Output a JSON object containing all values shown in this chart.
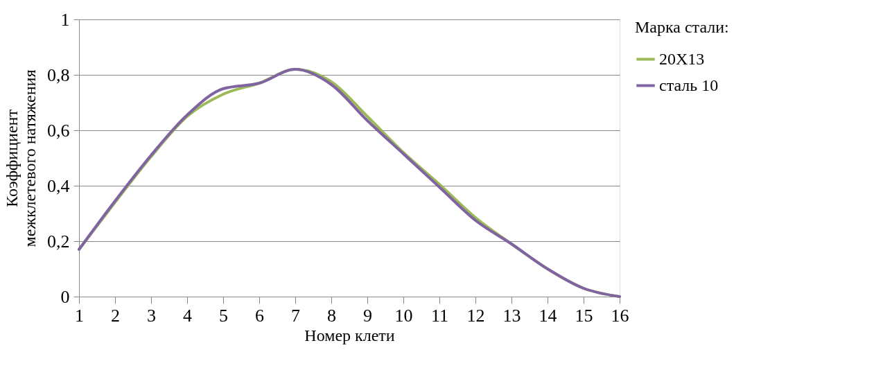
{
  "chart_data": {
    "type": "line",
    "xlabel": "Номер клети",
    "ylabel": "Коэффициент межклетевого натяжения",
    "legend_title": "Марка стали:",
    "x": [
      1,
      2,
      3,
      4,
      5,
      6,
      7,
      8,
      9,
      10,
      11,
      12,
      13,
      14,
      15,
      16
    ],
    "series": [
      {
        "name": "20X13",
        "color": "#9bbb59",
        "values": [
          0.17,
          0.34,
          0.505,
          0.65,
          0.73,
          0.77,
          0.82,
          0.775,
          0.65,
          0.52,
          0.405,
          0.285,
          0.19,
          0.1,
          0.03,
          0.0
        ]
      },
      {
        "name": "сталь 10",
        "color": "#8064a2",
        "values": [
          0.17,
          0.345,
          0.51,
          0.655,
          0.75,
          0.77,
          0.82,
          0.765,
          0.635,
          0.515,
          0.395,
          0.275,
          0.19,
          0.1,
          0.03,
          0.0
        ]
      }
    ],
    "xlim": [
      1,
      16
    ],
    "xticks": [
      1,
      2,
      3,
      4,
      5,
      6,
      7,
      8,
      9,
      10,
      11,
      12,
      13,
      14,
      15,
      16
    ],
    "ylim": [
      0,
      1
    ],
    "yticks": [
      0,
      {
        "value": 0.2,
        "label": "0,2"
      },
      {
        "value": 0.4,
        "label": "0,4"
      },
      {
        "value": 0.6,
        "label": "0,6"
      },
      {
        "value": 0.8,
        "label": "0,8"
      },
      1
    ],
    "grid": "y",
    "legend": "right",
    "marker": "none",
    "line_style": "solid"
  }
}
